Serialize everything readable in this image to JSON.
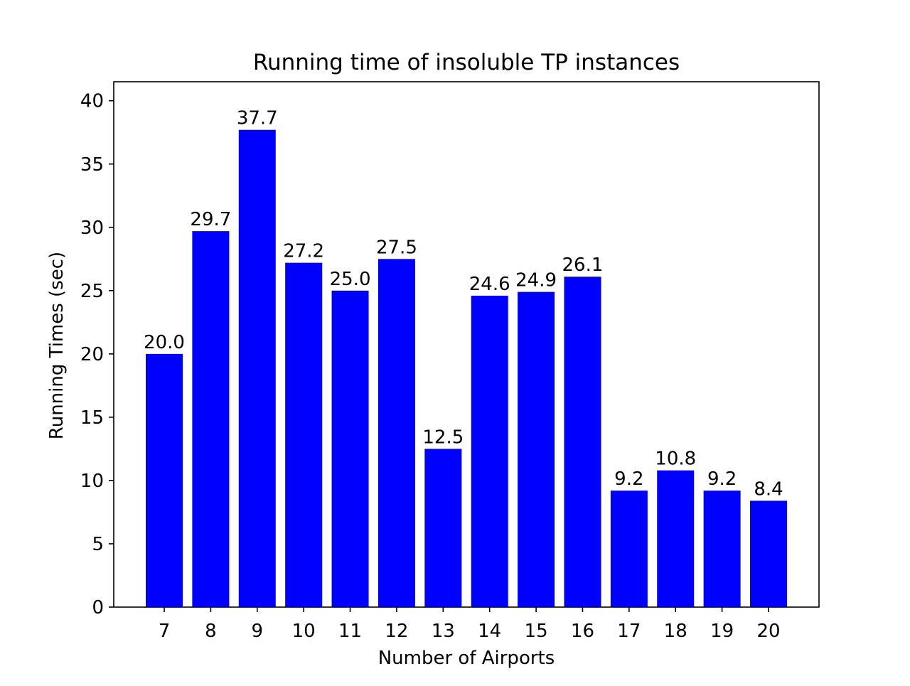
{
  "chart_data": {
    "type": "bar",
    "title": "Running time of insoluble TP instances",
    "xlabel": "Number of Airports",
    "ylabel": "Running Times (sec)",
    "categories": [
      "7",
      "8",
      "9",
      "10",
      "11",
      "12",
      "13",
      "14",
      "15",
      "16",
      "17",
      "18",
      "19",
      "20"
    ],
    "values": [
      20.0,
      29.7,
      37.7,
      27.2,
      25.0,
      27.5,
      12.5,
      24.6,
      24.9,
      26.1,
      9.2,
      10.8,
      9.2,
      8.4
    ],
    "data_labels": [
      "20.0",
      "29.7",
      "37.7",
      "27.2",
      "25.0",
      "27.5",
      "12.5",
      "24.6",
      "24.9",
      "26.1",
      "9.2",
      "10.8",
      "9.2",
      "8.4"
    ],
    "ylim": [
      0,
      41.5
    ],
    "yticks": [
      0,
      5,
      10,
      15,
      20,
      25,
      30,
      35,
      40
    ],
    "ytick_labels": [
      "0",
      "5",
      "10",
      "15",
      "20",
      "25",
      "30",
      "35",
      "40"
    ],
    "bar_color": "#0000ff",
    "grid": false,
    "legend": "none"
  }
}
